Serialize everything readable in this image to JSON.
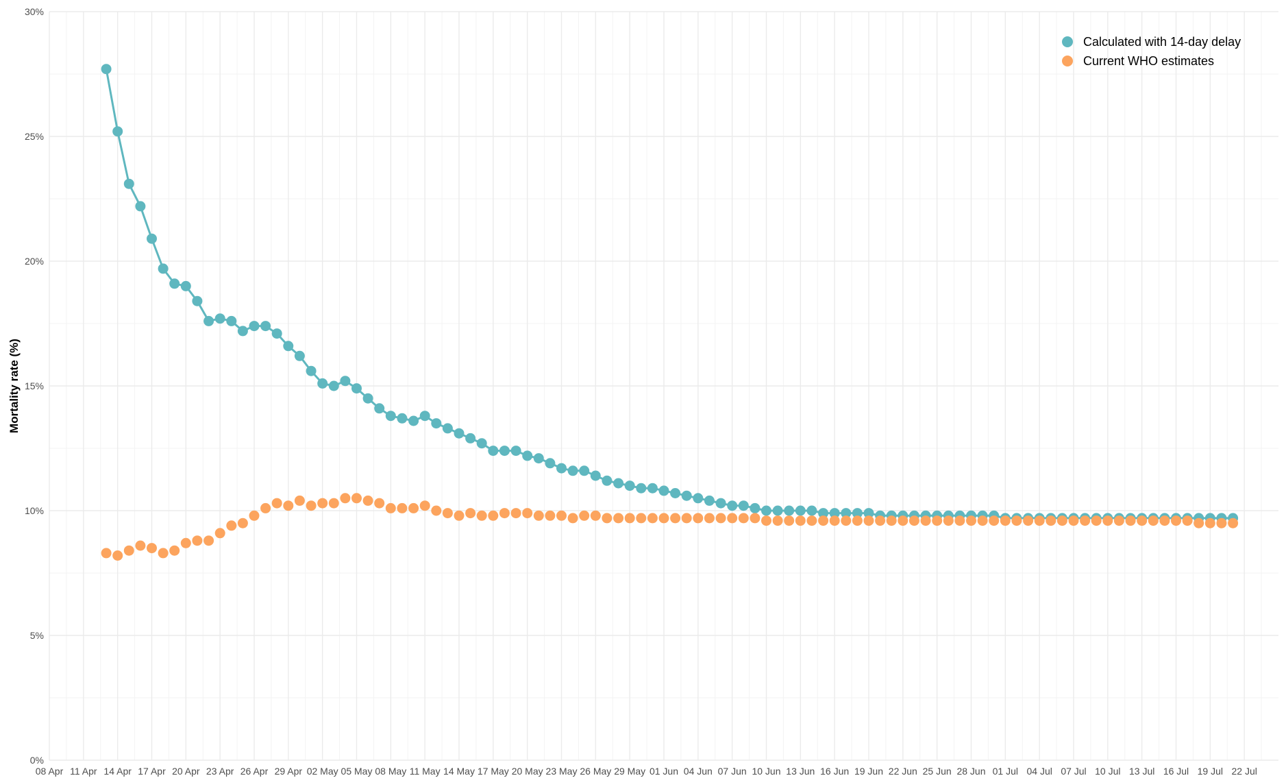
{
  "chart_data": {
    "type": "line",
    "ylabel": "Mortality rate (%)",
    "xlabel": "",
    "ylim": [
      0,
      30
    ],
    "yticks": [
      0,
      5,
      10,
      15,
      20,
      25,
      30
    ],
    "ytick_labels": [
      "0%",
      "5%",
      "10%",
      "15%",
      "20%",
      "25%",
      "30%"
    ],
    "xlim": [
      "2020-04-08",
      "2020-07-25"
    ],
    "xtick_labels": [
      "08 Apr",
      "11 Apr",
      "14 Apr",
      "17 Apr",
      "20 Apr",
      "23 Apr",
      "26 Apr",
      "29 Apr",
      "02 May",
      "05 May",
      "08 May",
      "11 May",
      "14 May",
      "17 May",
      "20 May",
      "23 May",
      "26 May",
      "29 May",
      "01 Jun",
      "04 Jun",
      "07 Jun",
      "10 Jun",
      "13 Jun",
      "16 Jun",
      "19 Jun",
      "22 Jun",
      "25 Jun",
      "28 Jun",
      "01 Jul",
      "04 Jul",
      "07 Jul",
      "10 Jul",
      "13 Jul",
      "16 Jul",
      "19 Jul",
      "22 Jul"
    ],
    "x_start": "2020-04-13",
    "grid": true,
    "legend_position": "top-right",
    "series": [
      {
        "name": "Calculated with 14-day delay",
        "color": "#5fb7bf",
        "line": true,
        "values": [
          27.7,
          25.2,
          23.1,
          22.2,
          20.9,
          19.7,
          19.1,
          19.0,
          18.4,
          17.6,
          17.7,
          17.6,
          17.2,
          17.4,
          17.4,
          17.1,
          16.6,
          16.2,
          15.6,
          15.1,
          15.0,
          15.2,
          14.9,
          14.5,
          14.1,
          13.8,
          13.7,
          13.6,
          13.8,
          13.5,
          13.3,
          13.1,
          12.9,
          12.7,
          12.4,
          12.4,
          12.4,
          12.2,
          12.1,
          11.9,
          11.7,
          11.6,
          11.6,
          11.4,
          11.2,
          11.1,
          11.0,
          10.9,
          10.9,
          10.8,
          10.7,
          10.6,
          10.5,
          10.4,
          10.3,
          10.2,
          10.2,
          10.1,
          10.0,
          10.0,
          10.0,
          10.0,
          10.0,
          9.9,
          9.9,
          9.9,
          9.9,
          9.9,
          9.8,
          9.8,
          9.8,
          9.8,
          9.8,
          9.8,
          9.8,
          9.8,
          9.8,
          9.8,
          9.8,
          9.7,
          9.7,
          9.7,
          9.7,
          9.7,
          9.7,
          9.7,
          9.7,
          9.7,
          9.7,
          9.7,
          9.7,
          9.7,
          9.7,
          9.7,
          9.7,
          9.7,
          9.7,
          9.7,
          9.7,
          9.7
        ]
      },
      {
        "name": "Current WHO estimates",
        "color": "#fca45e",
        "line": false,
        "values": [
          8.3,
          8.2,
          8.4,
          8.6,
          8.5,
          8.3,
          8.4,
          8.7,
          8.8,
          8.8,
          9.1,
          9.4,
          9.5,
          9.8,
          10.1,
          10.3,
          10.2,
          10.4,
          10.2,
          10.3,
          10.3,
          10.5,
          10.5,
          10.4,
          10.3,
          10.1,
          10.1,
          10.1,
          10.2,
          10.0,
          9.9,
          9.8,
          9.9,
          9.8,
          9.8,
          9.9,
          9.9,
          9.9,
          9.8,
          9.8,
          9.8,
          9.7,
          9.8,
          9.8,
          9.7,
          9.7,
          9.7,
          9.7,
          9.7,
          9.7,
          9.7,
          9.7,
          9.7,
          9.7,
          9.7,
          9.7,
          9.7,
          9.7,
          9.6,
          9.6,
          9.6,
          9.6,
          9.6,
          9.6,
          9.6,
          9.6,
          9.6,
          9.6,
          9.6,
          9.6,
          9.6,
          9.6,
          9.6,
          9.6,
          9.6,
          9.6,
          9.6,
          9.6,
          9.6,
          9.6,
          9.6,
          9.6,
          9.6,
          9.6,
          9.6,
          9.6,
          9.6,
          9.6,
          9.6,
          9.6,
          9.6,
          9.6,
          9.6,
          9.6,
          9.6,
          9.6,
          9.5,
          9.5,
          9.5,
          9.5
        ]
      }
    ]
  }
}
